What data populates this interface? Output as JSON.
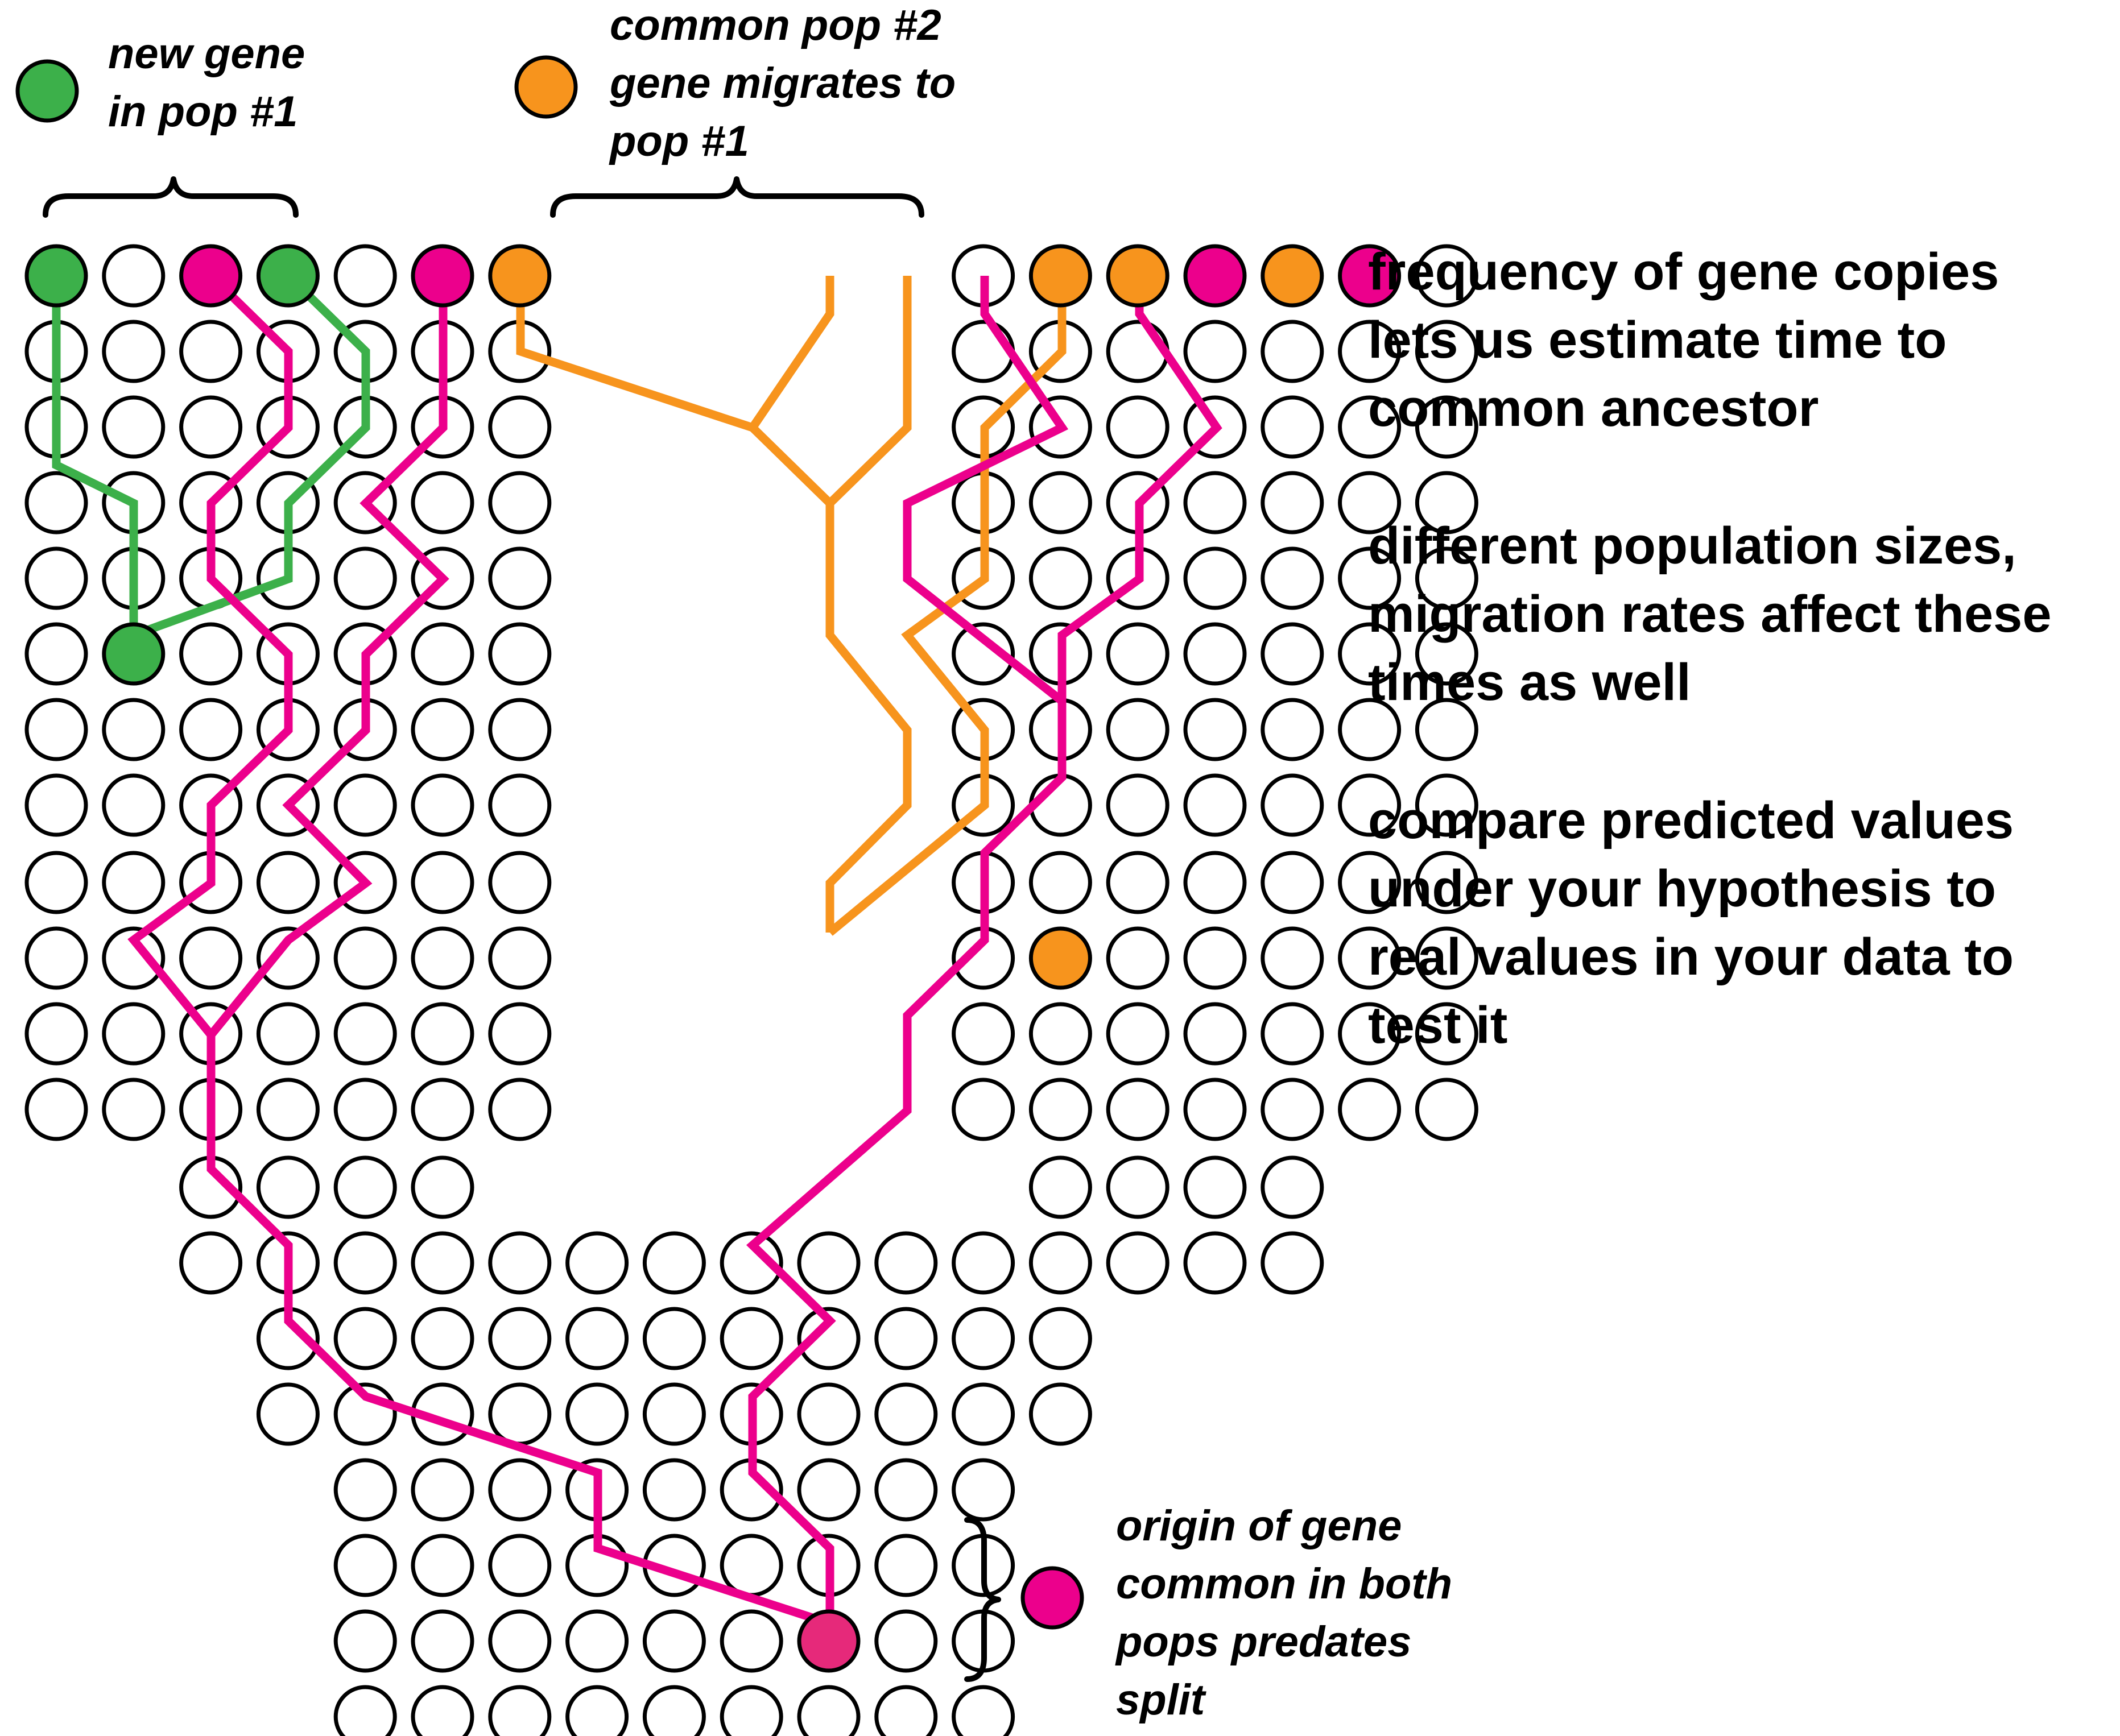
{
  "colors": {
    "new_gene": "#3cb04a",
    "migrant_gene": "#f7941d",
    "ancestral_gene": "#ec008c",
    "ancestral_gene_origin": "#e6297a",
    "empty_circle": "#ffffff",
    "outline": "#000000"
  },
  "legend": {
    "new_gene": {
      "icon": "green-circle",
      "text": "new gene\nin pop #1"
    },
    "migrant_gene": {
      "icon": "orange-circle",
      "text": "common pop #2\ngene migrates to\npop #1"
    },
    "ancestral_gene": {
      "icon": "magenta-circle",
      "text": "origin of gene\ncommon in both\npops predates\nsplit"
    }
  },
  "notes": [
    "frequency of gene copies\nlets us estimate time to\ncommon ancestor",
    "different population sizes,\nmigration rates affect these\ntimes as well",
    "compare predicted values\nunder your hypothesis to\nreal values in your data to\ntest it"
  ],
  "present_generation": {
    "population_1": [
      "green",
      "empty",
      "magenta",
      "green",
      "empty",
      "magenta",
      "orange"
    ],
    "population_2": [
      "empty",
      "orange",
      "orange",
      "magenta",
      "orange",
      "magenta",
      "empty"
    ]
  },
  "generations": {
    "separate_populations": 12,
    "transition": 2,
    "ancestral_population": 6,
    "total": 20
  }
}
